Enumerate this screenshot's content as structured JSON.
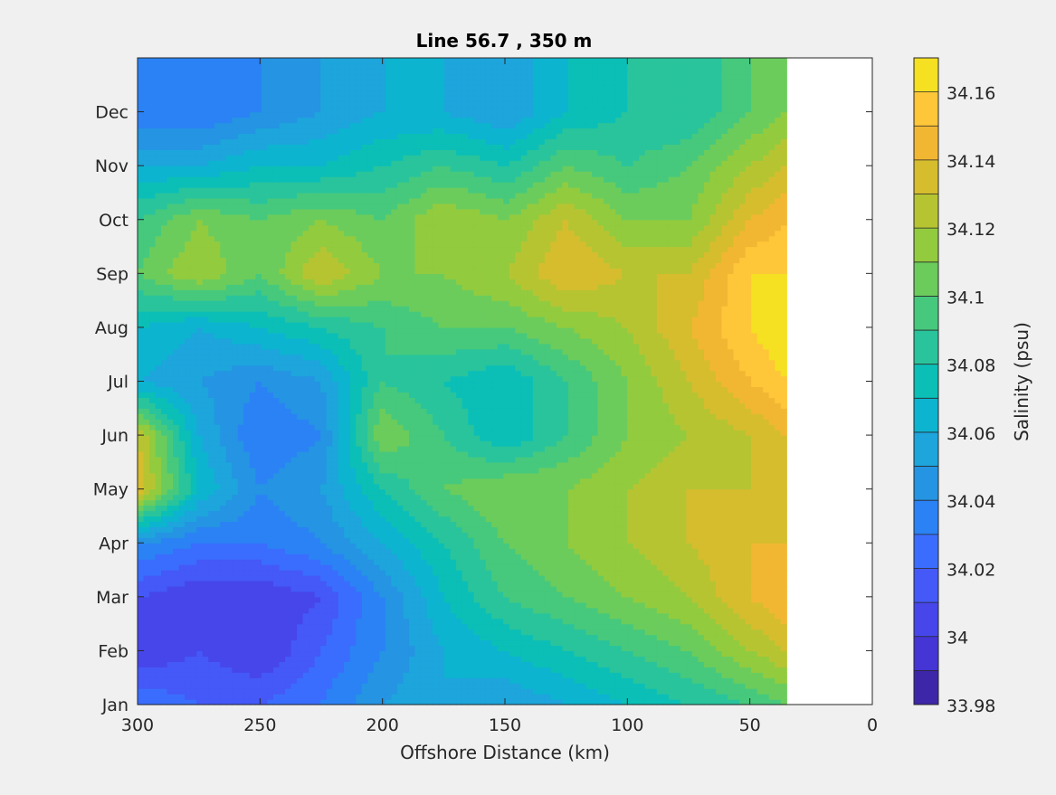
{
  "chart_data": {
    "type": "heatmap",
    "title": "Line 56.7 , 350 m",
    "xlabel": "Offshore Distance (km)",
    "ylabel": "",
    "x_direction": "reversed",
    "xlim": [
      0,
      300
    ],
    "x_ticks": [
      300,
      250,
      200,
      150,
      100,
      50,
      0
    ],
    "y_ticks": [
      "Jan",
      "Feb",
      "Mar",
      "Apr",
      "May",
      "Jun",
      "Jul",
      "Aug",
      "Sep",
      "Oct",
      "Nov",
      "Dec"
    ],
    "data_x_range_km": [
      35,
      300
    ],
    "colorbar": {
      "label": "Salinity (psu)",
      "range": [
        33.98,
        34.17
      ],
      "levels": [
        33.98,
        33.99,
        34.0,
        34.01,
        34.02,
        34.03,
        34.04,
        34.05,
        34.06,
        34.07,
        34.08,
        34.09,
        34.1,
        34.11,
        34.12,
        34.13,
        34.14,
        34.15,
        34.16,
        34.17
      ],
      "tick_values": [
        33.98,
        34.0,
        34.02,
        34.04,
        34.06,
        34.08,
        34.1,
        34.12,
        34.14,
        34.16
      ],
      "tick_labels": [
        "33.98",
        "34",
        "34.02",
        "34.04",
        "34.06",
        "34.08",
        "34.1",
        "34.12",
        "34.14",
        "34.16"
      ],
      "colormap": "parula",
      "colors": [
        "#3e26a8",
        "#4435d4",
        "#4746ea",
        "#4459f7",
        "#3a6dfd",
        "#2b82f5",
        "#2494e3",
        "#1da5dc",
        "#0cb4d0",
        "#0bbfb7",
        "#29c49c",
        "#46c97d",
        "#6bcc5c",
        "#93cb3e",
        "#b7c432",
        "#d6bd2e",
        "#f2b732",
        "#fec639",
        "#f5e022",
        "#f8fa0d"
      ]
    },
    "grid_centers": {
      "months": [
        "Jan",
        "Feb",
        "Mar",
        "Apr",
        "May",
        "Jun",
        "Jul",
        "Aug",
        "Sep",
        "Oct",
        "Nov",
        "Dec"
      ],
      "distance_km": [
        300,
        275,
        250,
        225,
        200,
        175,
        150,
        125,
        100,
        75,
        50,
        35
      ],
      "salinity": [
        [
          34.03,
          34.02,
          34.02,
          34.03,
          34.05,
          34.06,
          34.05,
          34.06,
          34.07,
          34.08,
          34.09,
          34.1
        ],
        [
          34.0,
          34.01,
          34.0,
          34.02,
          34.04,
          34.06,
          34.07,
          34.08,
          34.09,
          34.1,
          34.12,
          34.13
        ],
        [
          34.01,
          34.0,
          34.0,
          34.01,
          34.04,
          34.07,
          34.09,
          34.1,
          34.11,
          34.12,
          34.14,
          34.15
        ],
        [
          34.04,
          34.03,
          34.03,
          34.04,
          34.06,
          34.08,
          34.1,
          34.11,
          34.12,
          34.13,
          34.14,
          34.14
        ],
        [
          34.14,
          34.07,
          34.04,
          34.05,
          34.08,
          34.1,
          34.11,
          34.11,
          34.12,
          34.13,
          34.13,
          34.14
        ],
        [
          34.13,
          34.06,
          34.03,
          34.04,
          34.11,
          34.09,
          34.07,
          34.09,
          34.11,
          34.12,
          34.13,
          34.14
        ],
        [
          34.06,
          34.05,
          34.04,
          34.05,
          34.09,
          34.08,
          34.07,
          34.09,
          34.11,
          34.13,
          34.15,
          34.16
        ],
        [
          34.07,
          34.06,
          34.07,
          34.08,
          34.09,
          34.1,
          34.1,
          34.11,
          34.12,
          34.14,
          34.16,
          34.17
        ],
        [
          34.1,
          34.12,
          34.1,
          34.13,
          34.11,
          34.11,
          34.12,
          34.14,
          34.13,
          34.13,
          34.16,
          34.16
        ],
        [
          34.09,
          34.11,
          34.1,
          34.11,
          34.1,
          34.12,
          34.11,
          34.13,
          34.11,
          34.11,
          34.14,
          34.15
        ],
        [
          34.06,
          34.06,
          34.07,
          34.07,
          34.08,
          34.09,
          34.08,
          34.1,
          34.09,
          34.1,
          34.12,
          34.13
        ],
        [
          34.03,
          34.03,
          34.04,
          34.05,
          34.06,
          34.06,
          34.05,
          34.07,
          34.08,
          34.08,
          34.1,
          34.11
        ]
      ]
    }
  }
}
